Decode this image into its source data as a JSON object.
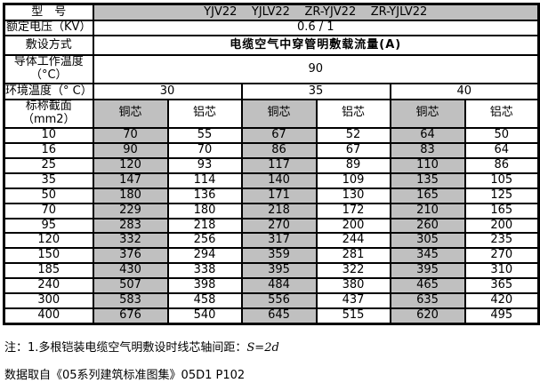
{
  "page": {
    "background": "#ffffff",
    "grid_color": "#000000",
    "shade_color": "#c0c0c0"
  },
  "chart_data": {
    "type": "table",
    "title": "电缆空气中穿管明敷载流量(A)",
    "model_label": "型　号",
    "model_value": "YJV22    YJLV22    ZR-YJV22    ZR-YJLV22",
    "models": [
      "YJV22",
      "YJLV22",
      "ZR-YJV22",
      "ZR-YJLV22"
    ],
    "voltage_label": "额定电压（KV）",
    "voltage_value": "0.6 / 1",
    "laying_label": "敷设方式",
    "laying_value": "电缆空气中穿管明敷载流量(A)",
    "conductor_temp_label": "导体工作温度（°C）",
    "conductor_temp_value": "90",
    "ambient_label": "环境温度（° C）",
    "ambient_values": [
      "30",
      "35",
      "40"
    ],
    "section_label": "标称截面（mm2）",
    "core_labels": [
      "铜芯",
      "铝芯",
      "铜芯",
      "铝芯",
      "铜芯",
      "铝芯"
    ],
    "rows": [
      {
        "size": "10",
        "values": [
          "70",
          "55",
          "67",
          "52",
          "64",
          "50"
        ]
      },
      {
        "size": "16",
        "values": [
          "90",
          "70",
          "86",
          "67",
          "83",
          "64"
        ]
      },
      {
        "size": "25",
        "values": [
          "120",
          "93",
          "117",
          "89",
          "110",
          "86"
        ]
      },
      {
        "size": "35",
        "values": [
          "147",
          "114",
          "140",
          "109",
          "135",
          "105"
        ]
      },
      {
        "size": "50",
        "values": [
          "180",
          "136",
          "171",
          "130",
          "165",
          "125"
        ]
      },
      {
        "size": "70",
        "values": [
          "229",
          "180",
          "218",
          "172",
          "210",
          "165"
        ]
      },
      {
        "size": "95",
        "values": [
          "283",
          "218",
          "270",
          "200",
          "260",
          "200"
        ]
      },
      {
        "size": "120",
        "values": [
          "332",
          "256",
          "317",
          "244",
          "305",
          "235"
        ]
      },
      {
        "size": "150",
        "values": [
          "376",
          "294",
          "359",
          "281",
          "345",
          "270"
        ]
      },
      {
        "size": "185",
        "values": [
          "430",
          "338",
          "395",
          "322",
          "395",
          "310"
        ]
      },
      {
        "size": "240",
        "values": [
          "507",
          "398",
          "484",
          "380",
          "465",
          "365"
        ]
      },
      {
        "size": "300",
        "values": [
          "583",
          "458",
          "556",
          "437",
          "635",
          "420"
        ]
      },
      {
        "size": "400",
        "values": [
          "676",
          "540",
          "645",
          "515",
          "620",
          "495"
        ]
      }
    ]
  },
  "notes": {
    "note1_prefix": "注：1.多根铠装电缆空气明敷设时线芯轴间距：",
    "note1_formula": "S=2d",
    "note2": "数据取自《05系列建筑标准图集》05D1 P102"
  }
}
